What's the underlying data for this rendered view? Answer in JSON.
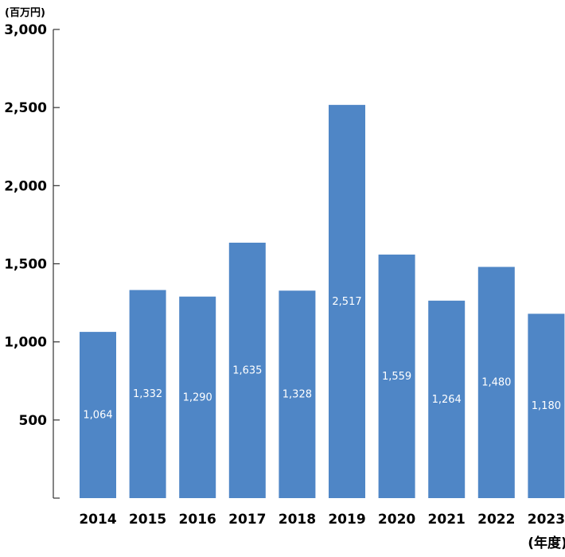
{
  "chart_data": {
    "type": "bar",
    "title": "",
    "ylabel": "(百万円)",
    "xlabel": "(年度)",
    "categories": [
      "2014",
      "2015",
      "2016",
      "2017",
      "2018",
      "2019",
      "2020",
      "2021",
      "2022",
      "2023"
    ],
    "values": [
      1064,
      1332,
      1290,
      1635,
      1328,
      2517,
      1559,
      1264,
      1480,
      1180
    ],
    "value_labels": [
      "1,064",
      "1,332",
      "1,290",
      "1,635",
      "1,328",
      "2,517",
      "1,559",
      "1,264",
      "1,480",
      "1,180"
    ],
    "yticks": [
      500,
      1000,
      1500,
      2000,
      2500,
      3000
    ],
    "ytick_labels": [
      "500",
      "1,000",
      "1,500",
      "2,000",
      "2,500",
      "3,000"
    ],
    "ylim": [
      0,
      3000
    ],
    "grid": false,
    "legend": "none",
    "bar_color": "#4f86c6",
    "label_color": "#ffffff"
  }
}
